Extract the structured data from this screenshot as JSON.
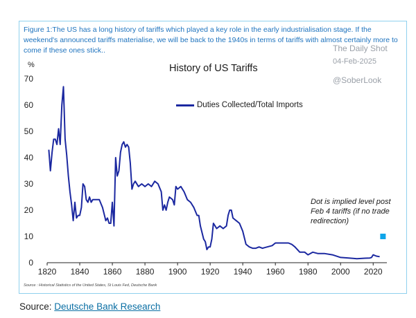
{
  "caption": "Figure 1:The US has a long history of tariffs which played a key role in the early industrialisation stage. If the weekend's announced tariffs materialise, we will be back to the 1940s in terms of tariffs with almost certainly more to come if these ones stick..",
  "watermark": {
    "title": "The Daily Shot",
    "date": "04-Feb-2025",
    "handle": "@SoberLook"
  },
  "source_note": "Source : Historical Statistics of the United States, St Louis Fed, Deutsche Bank",
  "source": {
    "label": "Source: ",
    "link_text": "Deutsche Bank Research"
  },
  "colors": {
    "line": "#1b28a0",
    "dot": "#0ea5e9",
    "frame": "#8fd0ee"
  },
  "chart_data": {
    "type": "line",
    "title": "History of US Tariffs",
    "ylabel": "%",
    "xlabel": "",
    "xlim": [
      1820,
      2025
    ],
    "ylim": [
      0,
      70
    ],
    "xticks": [
      1820,
      1840,
      1860,
      1880,
      1900,
      1920,
      1940,
      1960,
      1980,
      2000,
      2020
    ],
    "yticks": [
      0,
      10,
      20,
      30,
      40,
      50,
      60,
      70
    ],
    "legend": "Duties Collected/Total Imports",
    "annotation": "Dot is implied level post Feb 4 tariffs (if no trade redirection)",
    "series": [
      {
        "name": "Duties Collected/Total Imports",
        "x": [
          1821,
          1822,
          1823,
          1824,
          1825,
          1826,
          1827,
          1828,
          1829,
          1830,
          1831,
          1832,
          1833,
          1834,
          1835,
          1836,
          1837,
          1838,
          1839,
          1840,
          1841,
          1842,
          1843,
          1844,
          1845,
          1846,
          1847,
          1848,
          1850,
          1852,
          1854,
          1856,
          1857,
          1858,
          1859,
          1860,
          1861,
          1862,
          1863,
          1864,
          1865,
          1866,
          1867,
          1868,
          1869,
          1870,
          1871,
          1872,
          1873,
          1874,
          1876,
          1878,
          1880,
          1882,
          1884,
          1886,
          1888,
          1890,
          1891,
          1892,
          1893,
          1894,
          1895,
          1897,
          1898,
          1899,
          1900,
          1902,
          1904,
          1906,
          1908,
          1910,
          1912,
          1913,
          1914,
          1916,
          1917,
          1918,
          1919,
          1920,
          1921,
          1922,
          1923,
          1924,
          1926,
          1928,
          1930,
          1931,
          1932,
          1933,
          1934,
          1936,
          1938,
          1940,
          1942,
          1944,
          1946,
          1948,
          1950,
          1952,
          1955,
          1958,
          1960,
          1963,
          1966,
          1968,
          1970,
          1972,
          1975,
          1978,
          1980,
          1983,
          1986,
          1990,
          1995,
          2000,
          2005,
          2010,
          2015,
          2018,
          2019,
          2020,
          2022,
          2024
        ],
        "values": [
          43,
          35,
          42,
          47,
          47,
          45,
          51,
          45,
          60,
          67,
          47,
          41,
          33,
          27,
          22,
          16,
          23,
          17,
          18,
          18,
          21,
          30,
          29,
          24,
          23,
          25,
          23,
          24,
          24,
          24,
          21,
          16,
          17,
          15,
          15,
          23,
          14,
          40,
          33,
          35,
          42,
          45,
          46,
          44,
          45,
          44,
          38,
          28,
          30,
          31,
          29,
          30,
          29,
          30,
          29,
          31,
          30,
          27,
          20,
          22,
          20,
          23,
          25,
          24,
          22,
          29,
          28,
          29,
          27,
          24,
          23,
          21,
          18,
          18,
          14,
          9,
          8,
          5,
          6,
          6,
          9,
          15,
          14,
          13,
          14,
          13,
          14,
          18,
          20,
          20,
          17,
          16,
          15,
          12,
          7,
          6,
          5.5,
          5.5,
          6,
          5.5,
          6,
          6.5,
          7.5,
          7.5,
          7.5,
          7.5,
          7,
          6,
          4,
          4,
          3,
          4,
          3.5,
          3.5,
          3,
          2,
          1.8,
          1.5,
          1.7,
          1.8,
          2,
          3,
          2.5,
          2.3
        ]
      }
    ],
    "dot": {
      "x": 2026,
      "y": 10
    }
  }
}
